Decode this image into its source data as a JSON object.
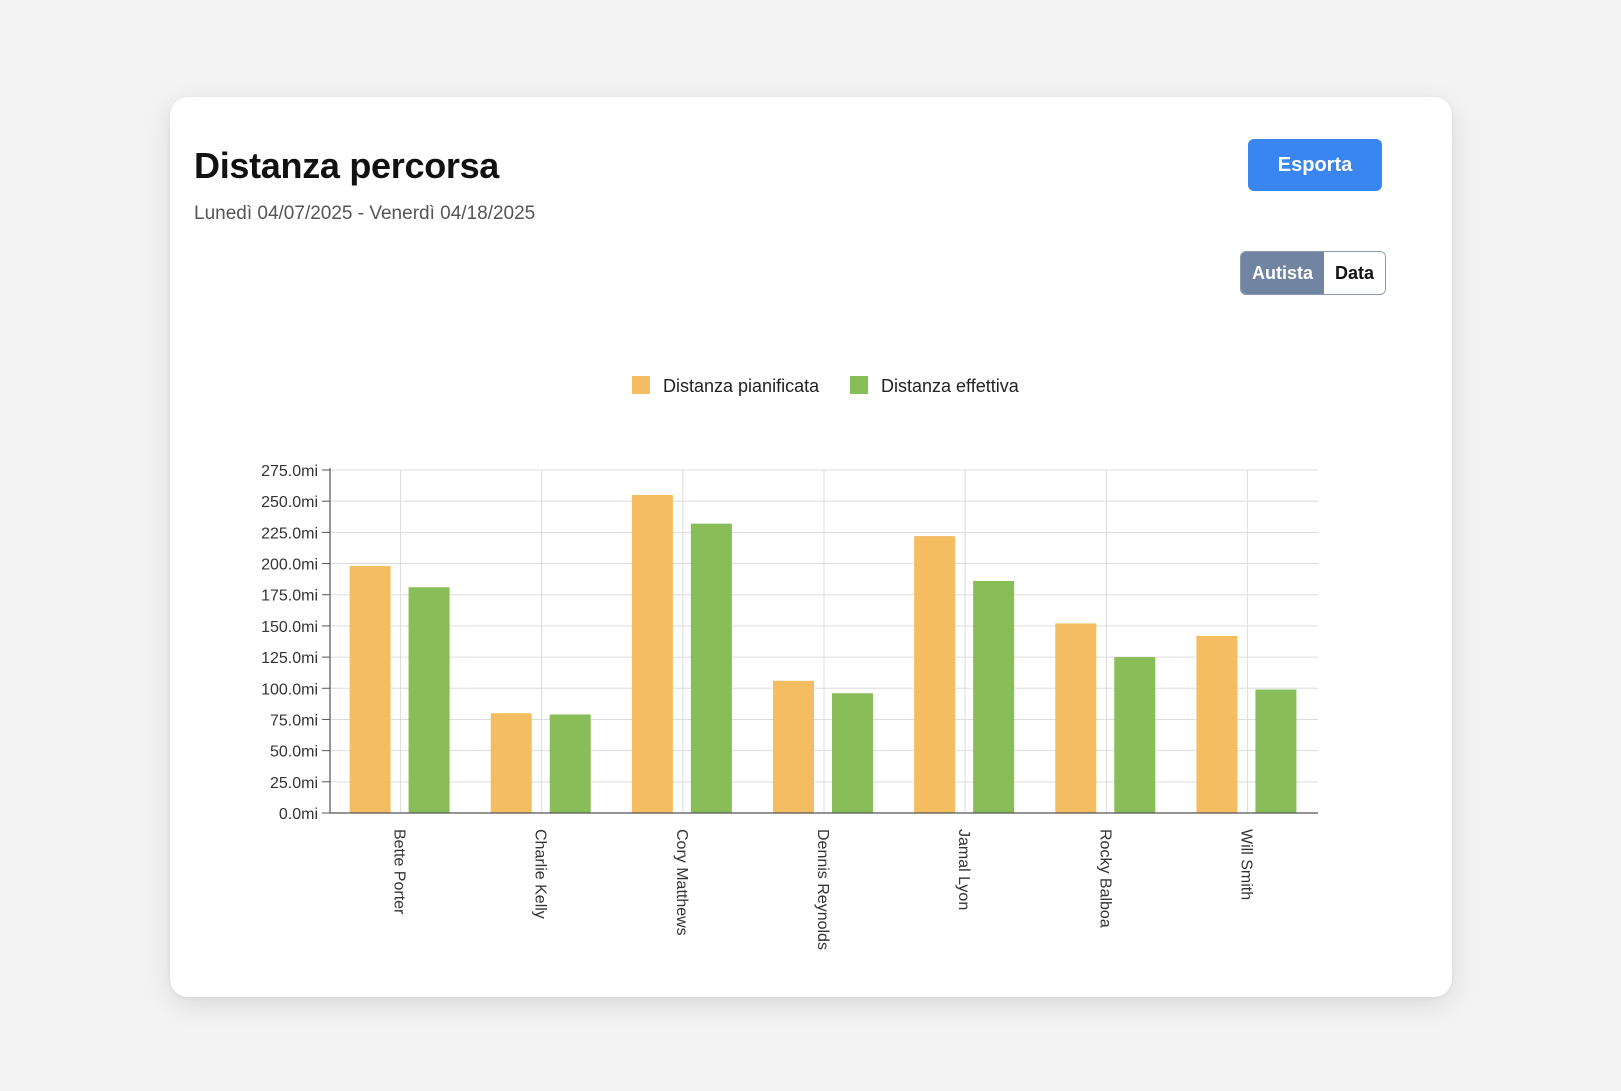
{
  "header": {
    "title": "Distanza percorsa",
    "subtitle": "Lunedì 04/07/2025 - Venerdì 04/18/2025",
    "export_label": "Esporta"
  },
  "view_toggle": {
    "options": [
      "Autista",
      "Data"
    ],
    "selected": "Autista"
  },
  "chart_data": {
    "type": "bar",
    "categories": [
      "Bette Porter",
      "Charlie Kelly",
      "Cory Matthews",
      "Dennis Reynolds",
      "Jamal Lyon",
      "Rocky Balboa",
      "Will Smith"
    ],
    "series": [
      {
        "name": "Distanza pianificata",
        "color": "#f4bd62",
        "values": [
          198,
          80,
          255,
          106,
          222,
          152,
          142
        ]
      },
      {
        "name": "Distanza effettiva",
        "color": "#88bd58",
        "values": [
          181,
          79,
          232,
          96,
          186,
          125,
          99
        ]
      }
    ],
    "y_ticks": [
      "0.0mi",
      "25.0mi",
      "50.0mi",
      "75.0mi",
      "100.0mi",
      "125.0mi",
      "150.0mi",
      "175.0mi",
      "200.0mi",
      "225.0mi",
      "250.0mi",
      "275.0mi"
    ],
    "ylim": [
      0,
      275
    ],
    "grid": true,
    "legend_position": "top-center"
  }
}
